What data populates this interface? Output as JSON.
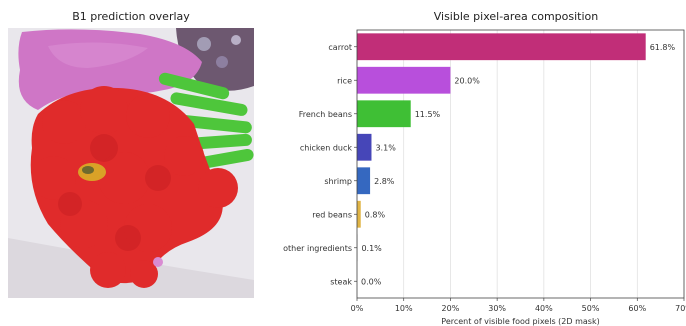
{
  "overlay": {
    "title": "B1 prediction overlay"
  },
  "chart_data": {
    "type": "bar",
    "orientation": "horizontal",
    "title": "Visible pixel-area composition",
    "xlabel": "Percent of visible food pixels (2D mask)",
    "ylabel": "",
    "xlim": [
      0,
      70
    ],
    "x_ticks": [
      "0%",
      "10%",
      "20%",
      "30%",
      "40%",
      "50%",
      "60%",
      "70%"
    ],
    "grid": true,
    "categories": [
      "carrot",
      "rice",
      "French beans",
      "chicken duck",
      "shrimp",
      "red beans",
      "other ingredients",
      "steak"
    ],
    "values": [
      61.8,
      20.0,
      11.5,
      3.1,
      2.8,
      0.8,
      0.1,
      0.0
    ],
    "value_labels": [
      "61.8%",
      "20.0%",
      "11.5%",
      "3.1%",
      "2.8%",
      "0.8%",
      "0.1%",
      "0.0%"
    ],
    "colors": [
      "#c12e78",
      "#b84fdc",
      "#3fbf35",
      "#4646b8",
      "#3568c0",
      "#e0b445",
      "#8a8a8a",
      "#8a8a8a"
    ]
  }
}
